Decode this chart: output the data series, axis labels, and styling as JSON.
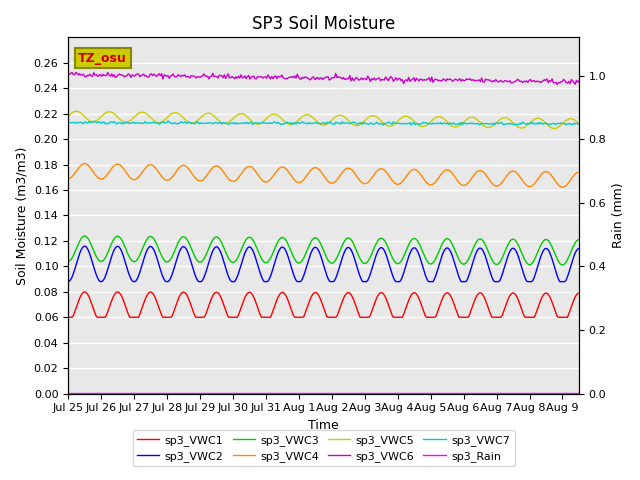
{
  "title": "SP3 Soil Moisture",
  "xlabel": "Time",
  "ylabel_left": "Soil Moisture (m3/m3)",
  "ylabel_right": "Rain (mm)",
  "annotation_text": "TZ_osu",
  "annotation_color": "#cc0000",
  "annotation_bg": "#cccc00",
  "xlim_days": [
    0,
    15.5
  ],
  "ylim_left": [
    0,
    0.28
  ],
  "ylim_right": [
    0,
    1.12
  ],
  "xtick_labels": [
    "Jul 25",
    "Jul 26",
    "Jul 27",
    "Jul 28",
    "Jul 29",
    "Jul 30",
    "Jul 31",
    "Aug 1",
    "Aug 2",
    "Aug 3",
    "Aug 4",
    "Aug 5",
    "Aug 6",
    "Aug 7",
    "Aug 8",
    "Aug 9"
  ],
  "ytick_left": [
    0.0,
    0.02,
    0.04,
    0.06,
    0.08,
    0.1,
    0.12,
    0.14,
    0.16,
    0.18,
    0.2,
    0.22,
    0.24,
    0.26
  ],
  "ytick_right": [
    0.0,
    0.2,
    0.4,
    0.6,
    0.8,
    1.0
  ],
  "background_color": "#e8e8e8",
  "grid_color": "#ffffff",
  "diurnal_period": 1.0,
  "series": {
    "sp3_VWC1": {
      "color": "#ff0000",
      "base": 0.068,
      "amp": 0.012,
      "trend": -0.001
    },
    "sp3_VWC2": {
      "color": "#0000ff",
      "base": 0.102,
      "amp": 0.014,
      "trend": -0.002
    },
    "sp3_VWC3": {
      "color": "#00cc00",
      "base": 0.114,
      "amp": 0.01,
      "trend": -0.003
    },
    "sp3_VWC4": {
      "color": "#ff8800",
      "base": 0.175,
      "amp": 0.006,
      "trend": -0.007
    },
    "sp3_VWC5": {
      "color": "#cccc00",
      "base": 0.218,
      "amp": 0.004,
      "trend": -0.006
    },
    "sp3_VWC6": {
      "color": "#cc00cc",
      "base": 0.251,
      "amp": 0.002,
      "trend": -0.006
    },
    "sp3_VWC7": {
      "color": "#00cccc",
      "base": 0.213,
      "amp": 0.002,
      "trend": -0.001
    },
    "sp3_Rain": {
      "color": "#ff00ff",
      "base": 0.002,
      "amp": 0.0,
      "trend": 0.0
    }
  },
  "n_points": 400,
  "legend_ncol": 4,
  "title_fontsize": 12,
  "label_fontsize": 9,
  "tick_fontsize": 8
}
